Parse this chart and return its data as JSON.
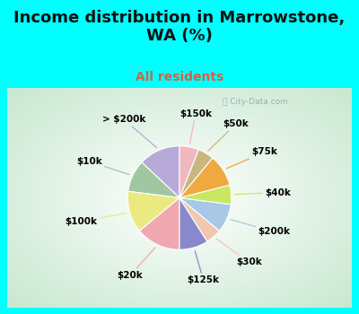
{
  "title": "Income distribution in Marrowstone,\nWA (%)",
  "subtitle": "All residents",
  "title_color": "#111111",
  "subtitle_color": "#cc6644",
  "bg_cyan": "#00ffff",
  "labels": [
    "> $200k",
    "$10k",
    "$100k",
    "$20k",
    "$125k",
    "$30k",
    "$200k",
    "$40k",
    "$75k",
    "$50k",
    "$150k"
  ],
  "sizes": [
    13,
    10,
    13,
    14,
    9,
    5,
    9,
    6,
    10,
    5,
    6
  ],
  "colors": [
    "#b8aad8",
    "#a0c8a0",
    "#eaea80",
    "#f0a8b0",
    "#8888cc",
    "#f0c8b0",
    "#a8c8e8",
    "#c8e860",
    "#f0a840",
    "#c8b880",
    "#f0b8c0"
  ],
  "label_fontsize": 7.5,
  "startangle": 90,
  "title_fontsize": 13,
  "subtitle_fontsize": 10
}
